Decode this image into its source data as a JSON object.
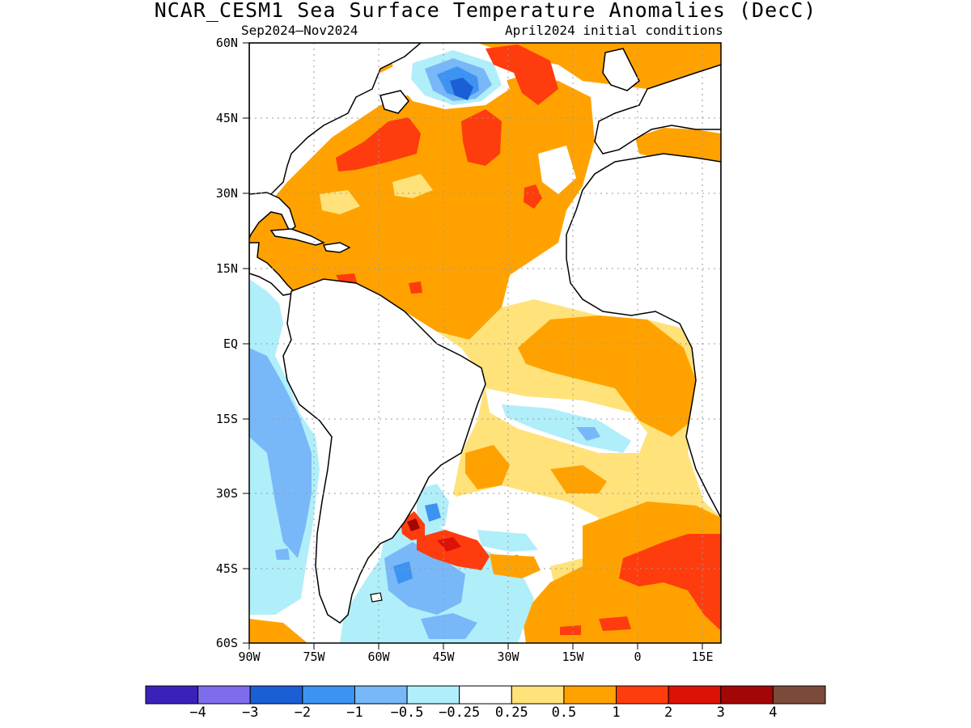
{
  "title": "NCAR_CESM1 Sea Surface Temperature Anomalies (DecC)",
  "subtitle_left": "Sep2024–Nov2024",
  "subtitle_right": "April2024 initial conditions",
  "lat_labels": [
    "60N",
    "45N",
    "30N",
    "15N",
    "EQ",
    "15S",
    "30S",
    "45S",
    "60S"
  ],
  "lon_labels": [
    "90W",
    "75W",
    "60W",
    "45W",
    "30W",
    "15W",
    "0",
    "15E"
  ],
  "colorbar": {
    "colors": [
      "#3a22b8",
      "#7d6ded",
      "#1b5fd6",
      "#3d93f2",
      "#78b8f8",
      "#b0eefa",
      "#ffffff",
      "#ffe27a",
      "#ffa200",
      "#ff3c0e",
      "#dd1207",
      "#a30606",
      "#7b4a3a"
    ],
    "labels": [
      "−4",
      "−3",
      "−2",
      "−1",
      "−0.5",
      "−0.25",
      "0.25",
      "0.5",
      "1",
      "2",
      "3",
      "4"
    ]
  }
}
